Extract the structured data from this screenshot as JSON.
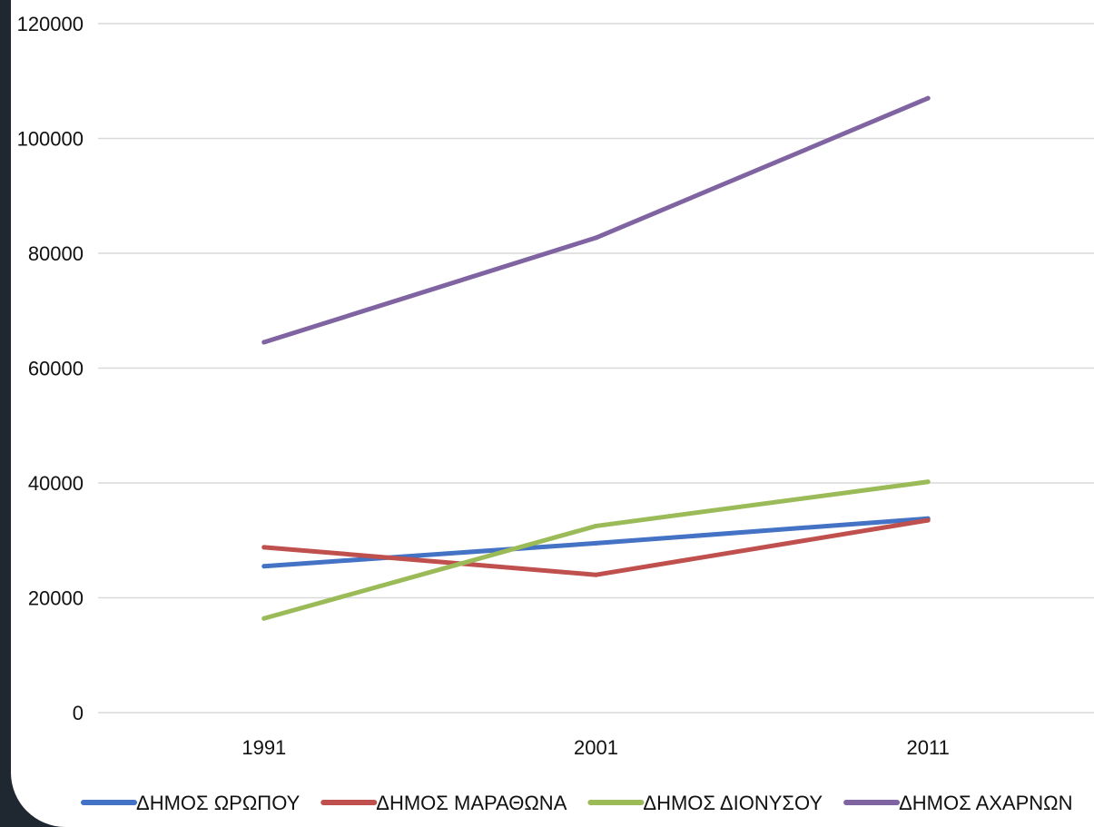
{
  "chart_data": {
    "type": "line",
    "categories": [
      "1991",
      "2001",
      "2011"
    ],
    "series": [
      {
        "name": "ΔΗΜΟΣ ΩΡΩΠΟΥ",
        "color": "#4472c4",
        "values": [
          25500,
          29500,
          33800
        ]
      },
      {
        "name": "ΔΗΜΟΣ ΜΑΡΑΘΩΝΑ",
        "color": "#c0504d",
        "values": [
          28800,
          24000,
          33500
        ]
      },
      {
        "name": "ΔΗΜΟΣ ΔΙΟΝΥΣΟΥ",
        "color": "#9bbb59",
        "values": [
          16400,
          32500,
          40200
        ]
      },
      {
        "name": "ΔΗΜΟΣ ΑΧΑΡΝΩΝ",
        "color": "#8064a2",
        "values": [
          64500,
          82700,
          107000
        ]
      }
    ],
    "ylim": [
      0,
      120000
    ],
    "yticks": [
      0,
      20000,
      40000,
      60000,
      80000,
      100000,
      120000
    ],
    "ytick_labels": [
      "0",
      "20000",
      "40000",
      "60000",
      "80000",
      "100000",
      "120000"
    ],
    "grid": true,
    "legend_position": "bottom",
    "gridline_color": "#d9d9d9"
  }
}
